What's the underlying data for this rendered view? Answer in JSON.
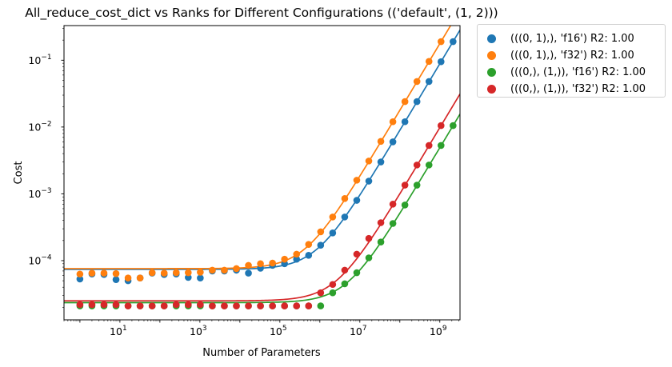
{
  "chart_data": {
    "type": "scatter",
    "title": "All_reduce_cost_dict vs Ranks for Different Configurations (('default', (1, 2)))",
    "xlabel": "Number of Parameters",
    "ylabel": "Cost",
    "xscale": "log",
    "yscale": "log",
    "xlim": [
      0.4,
      3200000000.0
    ],
    "ylim": [
      1.3e-05,
      0.33
    ],
    "x_ticks": [
      {
        "value": 10,
        "base": "10",
        "exp": "1"
      },
      {
        "value": 1000,
        "base": "10",
        "exp": "3"
      },
      {
        "value": 100000,
        "base": "10",
        "exp": "5"
      },
      {
        "value": 10000000,
        "base": "10",
        "exp": "7"
      },
      {
        "value": 1000000000,
        "base": "10",
        "exp": "9"
      }
    ],
    "y_ticks": [
      {
        "value": 0.0001,
        "base": "10",
        "exp": "−4"
      },
      {
        "value": 0.001,
        "base": "10",
        "exp": "−3"
      },
      {
        "value": 0.01,
        "base": "10",
        "exp": "−2"
      },
      {
        "value": 0.1,
        "base": "10",
        "exp": "−1"
      }
    ],
    "legend_position": "outside-top-right",
    "series": [
      {
        "name": "(((0, 1),), 'f16') R2: 1.00",
        "color": "#1f77b4",
        "x": [
          1,
          2,
          4,
          8,
          16,
          32,
          64,
          128,
          256,
          512,
          1024,
          2048,
          4096,
          8192,
          16384,
          32768,
          65536,
          131072,
          262144,
          524288,
          1048576,
          2097152,
          4194304,
          8388608,
          16777216,
          33554432,
          67108864,
          134217728,
          268435456,
          536870912,
          1073741824,
          2147483648
        ],
        "y": [
          5.3e-05,
          6.3e-05,
          6.2e-05,
          5.2e-05,
          5e-05,
          5.5e-05,
          6.5e-05,
          6.2e-05,
          6.3e-05,
          5.6e-05,
          5.5e-05,
          7e-05,
          7e-05,
          7.2e-05,
          6.5e-05,
          7.7e-05,
          8.5e-05,
          9e-05,
          0.000105,
          0.00012,
          0.00017,
          0.00026,
          0.00045,
          0.0008,
          0.00155,
          0.003,
          0.006,
          0.012,
          0.024,
          0.048,
          0.095,
          0.19
        ],
        "fit": {
          "a": 7.4e-05,
          "b": 8.85e-11
        }
      },
      {
        "name": "(((0, 1),), 'f32') R2: 1.00",
        "color": "#ff7f0e",
        "x": [
          1,
          2,
          4,
          8,
          16,
          32,
          64,
          128,
          256,
          512,
          1024,
          2048,
          4096,
          8192,
          16384,
          32768,
          65536,
          131072,
          262144,
          524288,
          1048576,
          2097152,
          4194304,
          8388608,
          16777216,
          33554432,
          67108864,
          134217728,
          268435456,
          536870912,
          1073741824
        ],
        "y": [
          6.3e-05,
          6.5e-05,
          6.5e-05,
          6.4e-05,
          5.5e-05,
          5.5e-05,
          6.6e-05,
          6.5e-05,
          6.6e-05,
          6.6e-05,
          6.7e-05,
          7.2e-05,
          7.2e-05,
          7.6e-05,
          8.5e-05,
          9e-05,
          9.2e-05,
          0.000105,
          0.000125,
          0.000175,
          0.00027,
          0.00045,
          0.00085,
          0.0016,
          0.0031,
          0.0061,
          0.012,
          0.024,
          0.048,
          0.096,
          0.19
        ],
        "fit": {
          "a": 7.6e-05,
          "b": 1.77e-10
        }
      },
      {
        "name": "(((0,), (1,)), 'f16') R2: 1.00",
        "color": "#2ca02c",
        "x": [
          1,
          2,
          4,
          8,
          16,
          32,
          64,
          128,
          256,
          512,
          1024,
          2048,
          4096,
          8192,
          16384,
          32768,
          65536,
          131072,
          262144,
          524288,
          1048576,
          2097152,
          4194304,
          8388608,
          16777216,
          33554432,
          67108864,
          134217728,
          268435456,
          536870912,
          1073741824,
          2147483648
        ],
        "y": [
          2.1e-05,
          2.1e-05,
          2.1e-05,
          2.1e-05,
          2.1e-05,
          2.1e-05,
          2.1e-05,
          2.1e-05,
          2.1e-05,
          2.1e-05,
          2.1e-05,
          2.1e-05,
          2.1e-05,
          2.1e-05,
          2.1e-05,
          2.1e-05,
          2.1e-05,
          2.1e-05,
          2.1e-05,
          2.1e-05,
          2.1e-05,
          3.3e-05,
          4.5e-05,
          6.6e-05,
          0.00011,
          0.00019,
          0.00036,
          0.00068,
          0.00135,
          0.0027,
          0.0053,
          0.0105
        ],
        "fit": {
          "a": 2.35e-05,
          "b": 4.88e-12
        }
      },
      {
        "name": "(((0,), (1,)), 'f32') R2: 1.00",
        "color": "#d62728",
        "x": [
          1,
          2,
          4,
          8,
          16,
          32,
          64,
          128,
          256,
          512,
          1024,
          2048,
          4096,
          8192,
          16384,
          32768,
          65536,
          131072,
          262144,
          524288,
          1048576,
          2097152,
          4194304,
          8388608,
          16777216,
          33554432,
          67108864,
          134217728,
          268435456,
          536870912,
          1073741824
        ],
        "y": [
          2.2e-05,
          2.2e-05,
          2.2e-05,
          2.2e-05,
          2.1e-05,
          2.1e-05,
          2.1e-05,
          2.1e-05,
          2.2e-05,
          2.2e-05,
          2.2e-05,
          2.1e-05,
          2.1e-05,
          2.1e-05,
          2.1e-05,
          2.1e-05,
          2.1e-05,
          2.1e-05,
          2.1e-05,
          2.1e-05,
          3.3e-05,
          4.4e-05,
          7.2e-05,
          0.000125,
          0.000215,
          0.00037,
          0.0007,
          0.00135,
          0.0027,
          0.0053,
          0.0105
        ],
        "fit": {
          "a": 2.5e-05,
          "b": 9.76e-12
        }
      }
    ]
  }
}
